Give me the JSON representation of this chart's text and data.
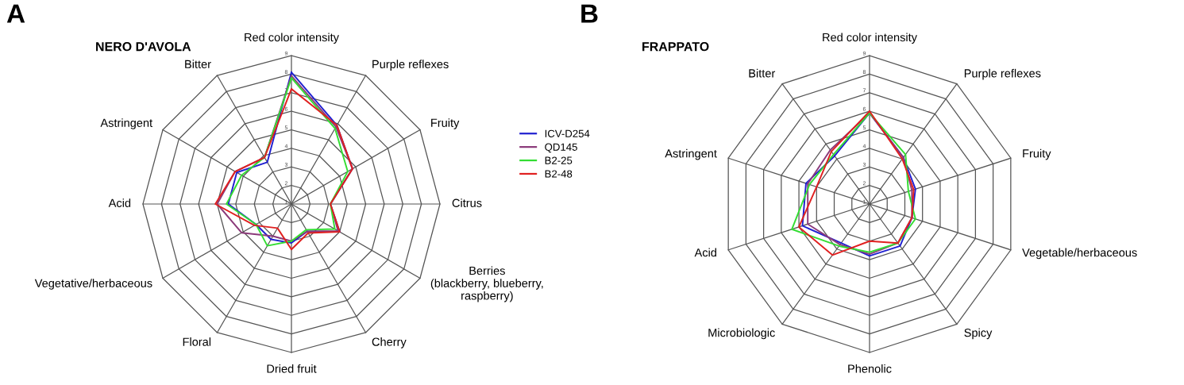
{
  "chart_data": [
    {
      "type": "radar",
      "title": "NERO D'AVOLA",
      "annotations": [
        "A"
      ],
      "legend": "right",
      "ylim": [
        1,
        9
      ],
      "yticks": [
        1,
        2,
        3,
        4,
        5,
        6,
        7,
        8,
        9
      ],
      "grid": true,
      "categories": [
        "Red color intensity",
        "Purple reflexes",
        "Fruity",
        "Citrus",
        "Berries\n(blackberry, blueberry,\nraspberry)",
        "Cherry",
        "Dried fruit",
        "Floral",
        "Vegetative/herbaceous",
        "Acid",
        "Astringent",
        "Bitter"
      ],
      "series": [
        {
          "name": "ICV-D254",
          "color": "#2020d0",
          "values": [
            8.1,
            5.9,
            4.8,
            3.1,
            4.0,
            2.7,
            3.1,
            3.2,
            3.2,
            4.4,
            4.4,
            3.6
          ]
        },
        {
          "name": "QD145",
          "color": "#8b3a7a",
          "values": [
            7.9,
            5.8,
            4.8,
            3.1,
            3.9,
            2.7,
            3.0,
            3.0,
            4.1,
            5.0,
            4.5,
            3.9
          ]
        },
        {
          "name": "B2-25",
          "color": "#33dd33",
          "values": [
            7.8,
            5.7,
            4.5,
            3.1,
            3.7,
            2.6,
            3.0,
            3.6,
            3.2,
            4.5,
            4.1,
            3.9
          ]
        },
        {
          "name": "B2-48",
          "color": "#e02020",
          "values": [
            7.2,
            5.9,
            4.8,
            3.1,
            4.0,
            2.8,
            3.45,
            2.5,
            3.3,
            5.1,
            4.5,
            3.9
          ]
        }
      ]
    },
    {
      "type": "radar",
      "title": "FRAPPATO",
      "annotations": [
        "B"
      ],
      "ylim": [
        1,
        9
      ],
      "yticks": [
        1,
        2,
        3,
        4,
        5,
        6,
        7,
        8,
        9
      ],
      "grid": true,
      "categories": [
        "Red color intensity",
        "Purple reflexes",
        "Fruity",
        "Vegetable/herbaceous",
        "Spicy",
        "Phenolic",
        "Microbiologic",
        "Acid",
        "Astringent",
        "Bitter"
      ],
      "series": [
        {
          "color": "#2020d0",
          "values": [
            5.9,
            4.1,
            3.6,
            3.4,
            3.8,
            3.8,
            3.6,
            4.8,
            4.6,
            4.2
          ]
        },
        {
          "color": "#8b3a7a",
          "values": [
            5.9,
            4.1,
            3.4,
            3.4,
            3.6,
            3.7,
            3.7,
            4.5,
            4.5,
            4.6
          ]
        },
        {
          "color": "#33dd33",
          "values": [
            5.9,
            4.3,
            3.2,
            3.6,
            3.6,
            3.6,
            3.8,
            5.4,
            4.4,
            4.3
          ]
        },
        {
          "color": "#e02020",
          "values": [
            6.0,
            4.0,
            3.5,
            3.4,
            3.6,
            3.0,
            4.4,
            5.0,
            4.0,
            4.5
          ]
        }
      ]
    }
  ]
}
